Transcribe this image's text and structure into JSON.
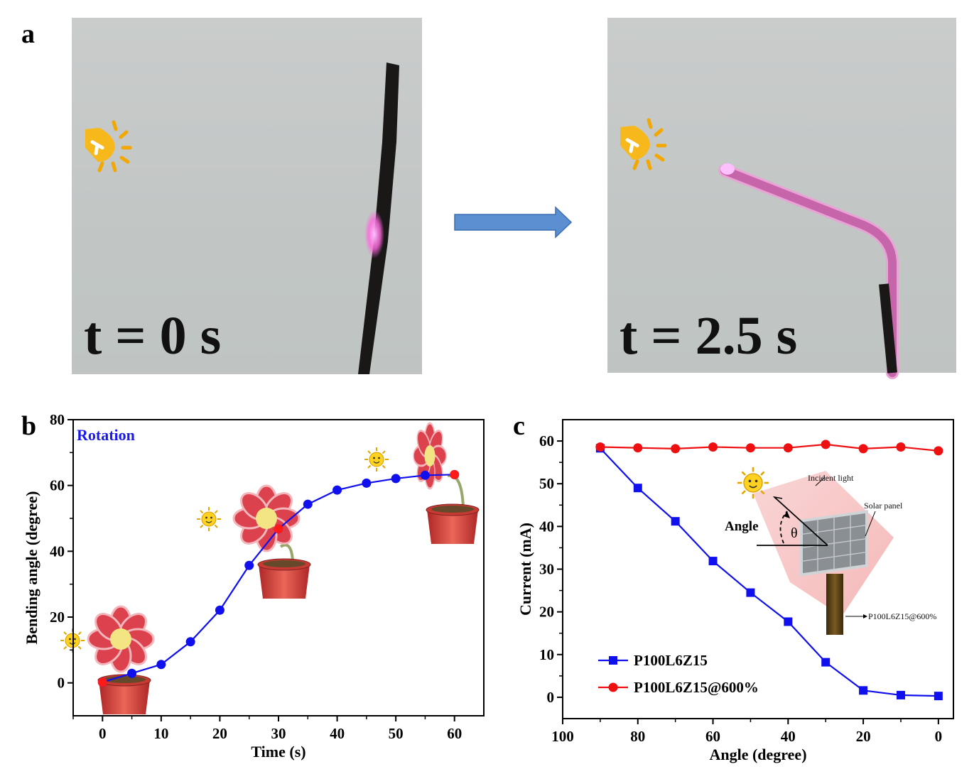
{
  "figure": {
    "panel_letters": {
      "a": "a",
      "b": "b",
      "c": "c"
    },
    "photo_left_label": "t = 0 s",
    "photo_right_label": "t = 2.5 s"
  },
  "inset": {
    "incident_light": "Incident light",
    "solar_panel": "Solar panel",
    "angle": "Angle",
    "theta": "θ",
    "sample": "P100L6Z15@600%"
  },
  "chart_data": [
    {
      "type": "line",
      "panel": "b",
      "annotation": "Rotation",
      "xlabel": "Time (s)",
      "ylabel": "Bending angle (degree)",
      "xlim": [
        -5,
        65
      ],
      "ylim": [
        -10,
        80
      ],
      "xticks": [
        0,
        10,
        20,
        30,
        40,
        50,
        60
      ],
      "yticks": [
        0,
        20,
        40,
        60,
        80
      ],
      "series": [
        {
          "color": "#1010ee",
          "x": [
            0,
            5,
            10,
            15,
            20,
            25,
            30,
            35,
            40,
            45,
            50,
            55,
            60
          ],
          "y": [
            0.2,
            2.9,
            5.6,
            12.5,
            22.1,
            35.7,
            46.8,
            54.3,
            58.6,
            60.7,
            62.1,
            63.1,
            63.3
          ]
        }
      ],
      "highlight_points": [
        {
          "x": 0,
          "y": 0.2,
          "color": "#ff1a1a"
        },
        {
          "x": 30,
          "y": 46.8,
          "color": "#ff1a1a"
        },
        {
          "x": 60,
          "y": 63.3,
          "color": "#ff1a1a"
        }
      ],
      "grid": false
    },
    {
      "type": "line",
      "panel": "c",
      "xlabel": "Angle (degree)",
      "ylabel": "Current (mA)",
      "xlim": [
        100,
        -4
      ],
      "ylim": [
        -5,
        65
      ],
      "xticks": [
        100,
        80,
        60,
        40,
        20,
        0
      ],
      "yticks": [
        0,
        10,
        20,
        30,
        40,
        50,
        60
      ],
      "series": [
        {
          "name": "P100L6Z15",
          "color": "#1010ee",
          "marker": "square",
          "x": [
            90,
            80,
            70,
            60,
            50,
            40,
            30,
            20,
            10,
            0
          ],
          "y": [
            58.3,
            49.0,
            41.2,
            31.9,
            24.5,
            17.7,
            8.2,
            1.6,
            0.5,
            0.3
          ]
        },
        {
          "name": "P100L6Z15@600%",
          "color": "#ee1010",
          "marker": "circle",
          "x": [
            90,
            80,
            70,
            60,
            50,
            40,
            30,
            20,
            10,
            0
          ],
          "y": [
            58.6,
            58.4,
            58.2,
            58.6,
            58.4,
            58.4,
            59.2,
            58.2,
            58.6,
            57.7
          ]
        }
      ],
      "legend_position": "bottom-left",
      "grid": false
    }
  ]
}
